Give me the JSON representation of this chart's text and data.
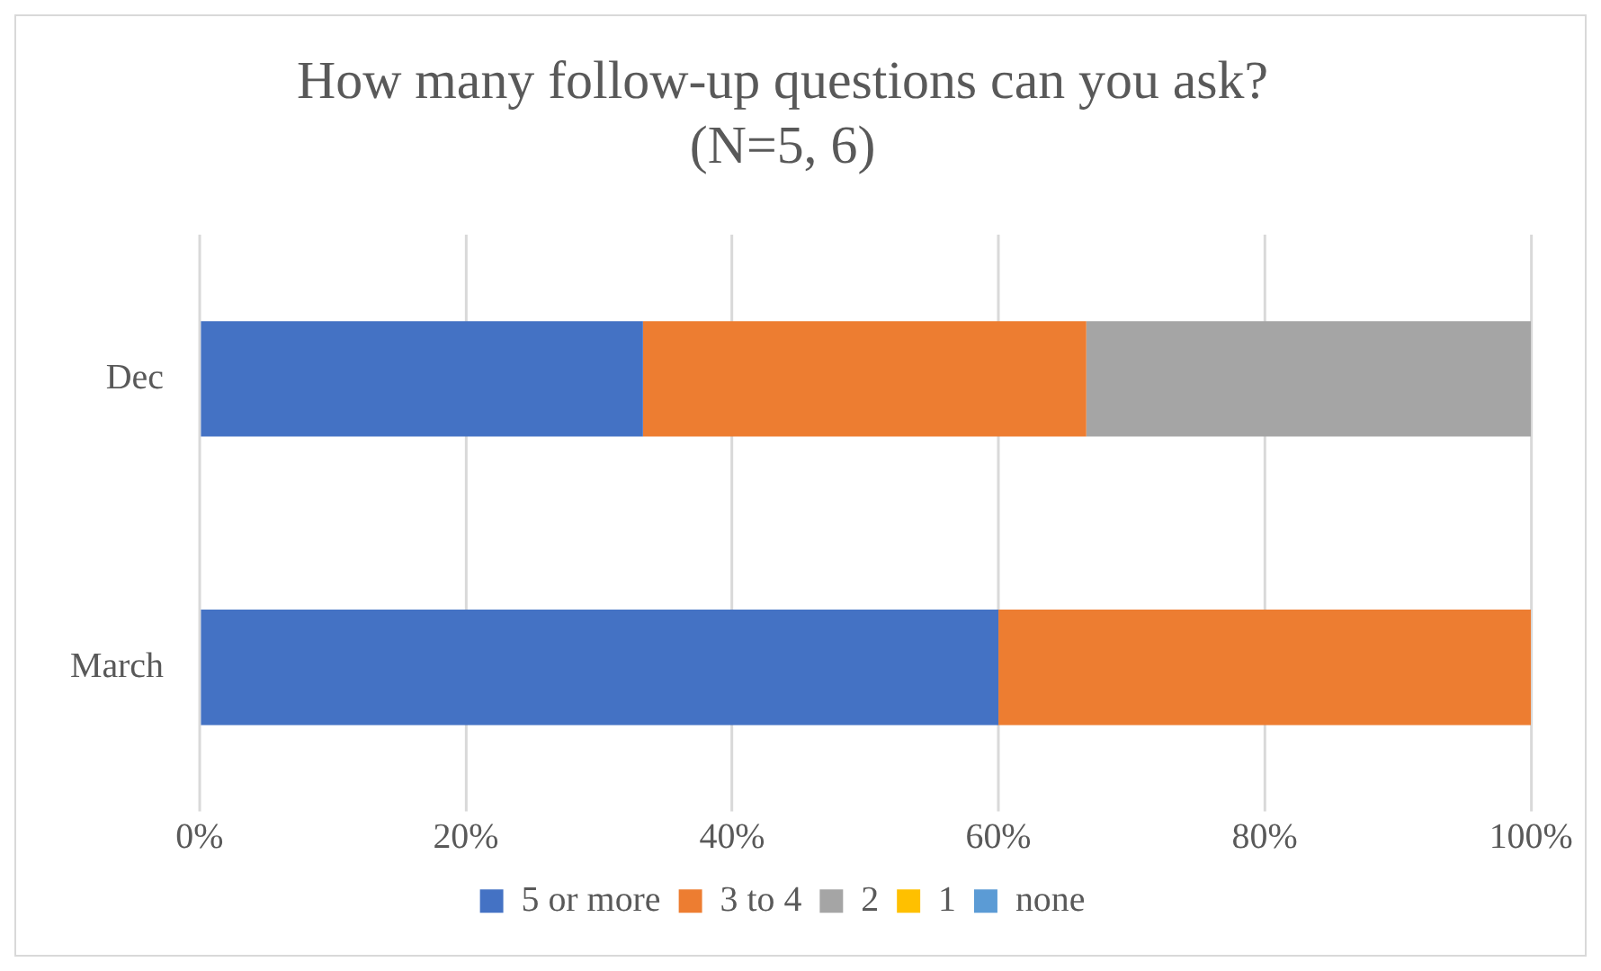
{
  "chart_data": {
    "type": "bar",
    "orientation": "horizontal",
    "stacked": true,
    "title": "How many follow-up questions can you ask?\n(N=5, 6)",
    "categories": [
      "Dec",
      "March"
    ],
    "series": [
      {
        "name": "5 or more",
        "color": "#4472c4",
        "values": [
          33.3,
          60
        ]
      },
      {
        "name": "3 to 4",
        "color": "#ed7d31",
        "values": [
          33.3,
          40
        ]
      },
      {
        "name": "2",
        "color": "#a5a5a5",
        "values": [
          33.4,
          0
        ]
      },
      {
        "name": "1",
        "color": "#ffc000",
        "values": [
          0,
          0
        ]
      },
      {
        "name": "none",
        "color": "#5b9bd5",
        "values": [
          0,
          0
        ]
      }
    ],
    "xlim": [
      0,
      100
    ],
    "xticks": [
      {
        "value": 0,
        "label": "0%"
      },
      {
        "value": 20,
        "label": "20%"
      },
      {
        "value": 40,
        "label": "40%"
      },
      {
        "value": 60,
        "label": "60%"
      },
      {
        "value": 80,
        "label": "80%"
      },
      {
        "value": 100,
        "label": "100%"
      }
    ],
    "grid": "x",
    "legend": "bottom"
  }
}
